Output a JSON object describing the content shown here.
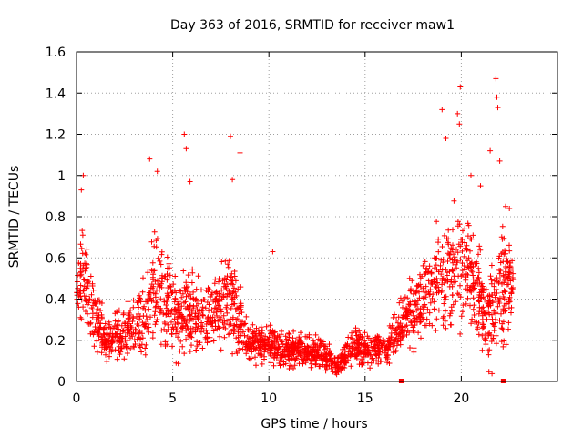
{
  "chart_data": {
    "type": "scatter",
    "title": "Day 363 of 2016, SRMTID for receiver maw1",
    "xlabel": "GPS time / hours",
    "ylabel": "SRMTID / TECUs",
    "xlim": [
      0,
      25
    ],
    "ylim": [
      0,
      1.6
    ],
    "xticks": [
      0,
      5,
      10,
      15,
      20
    ],
    "xtick_labels": [
      "0",
      "5",
      "10",
      "15",
      "20"
    ],
    "yticks": [
      0,
      0.2,
      0.4,
      0.6,
      0.8,
      1,
      1.2,
      1.4,
      1.6
    ],
    "ytick_labels": [
      "0",
      "0.2",
      "0.4",
      "0.6",
      "0.8",
      "1",
      "1.2",
      "1.4",
      "1.6"
    ],
    "grid": true,
    "legend": "none",
    "series_color": "#ff0000",
    "envelope": {
      "x": [
        0,
        0.3,
        0.8,
        1.5,
        2.5,
        3.5,
        4.3,
        5.0,
        5.7,
        6.5,
        7.2,
        8.0,
        9.0,
        10.0,
        11.0,
        12.0,
        13.0,
        13.6,
        14.3,
        15.0,
        16.0,
        16.8,
        17.5,
        18.5,
        19.2,
        20.0,
        20.8,
        21.5,
        22.1,
        22.7
      ],
      "center": [
        0.4,
        0.55,
        0.35,
        0.2,
        0.25,
        0.3,
        0.5,
        0.3,
        0.35,
        0.3,
        0.35,
        0.4,
        0.2,
        0.18,
        0.15,
        0.15,
        0.12,
        0.07,
        0.18,
        0.15,
        0.15,
        0.25,
        0.35,
        0.45,
        0.5,
        0.6,
        0.45,
        0.3,
        0.45,
        0.45
      ],
      "spread": [
        0.12,
        0.2,
        0.15,
        0.08,
        0.12,
        0.15,
        0.25,
        0.15,
        0.18,
        0.15,
        0.15,
        0.2,
        0.08,
        0.08,
        0.08,
        0.07,
        0.06,
        0.04,
        0.08,
        0.07,
        0.06,
        0.1,
        0.15,
        0.2,
        0.25,
        0.25,
        0.2,
        0.2,
        0.3,
        0.15
      ]
    },
    "outliers": [
      {
        "x": 0.35,
        "y": 1.0
      },
      {
        "x": 0.25,
        "y": 0.93
      },
      {
        "x": 3.8,
        "y": 1.08
      },
      {
        "x": 4.2,
        "y": 1.02
      },
      {
        "x": 5.6,
        "y": 1.2
      },
      {
        "x": 5.7,
        "y": 1.13
      },
      {
        "x": 5.9,
        "y": 0.97
      },
      {
        "x": 8.0,
        "y": 1.19
      },
      {
        "x": 8.5,
        "y": 1.11
      },
      {
        "x": 8.1,
        "y": 0.98
      },
      {
        "x": 10.2,
        "y": 0.63
      },
      {
        "x": 19.0,
        "y": 1.32
      },
      {
        "x": 19.2,
        "y": 1.18
      },
      {
        "x": 19.8,
        "y": 1.3
      },
      {
        "x": 19.9,
        "y": 1.25
      },
      {
        "x": 19.95,
        "y": 1.43
      },
      {
        "x": 20.5,
        "y": 1.0
      },
      {
        "x": 21.0,
        "y": 0.95
      },
      {
        "x": 21.5,
        "y": 1.12
      },
      {
        "x": 21.8,
        "y": 1.47
      },
      {
        "x": 21.85,
        "y": 1.38
      },
      {
        "x": 21.9,
        "y": 1.33
      },
      {
        "x": 22.0,
        "y": 1.07
      },
      {
        "x": 22.3,
        "y": 0.85
      },
      {
        "x": 22.5,
        "y": 0.84
      }
    ],
    "zero_markers": [
      16.9,
      22.2
    ]
  }
}
